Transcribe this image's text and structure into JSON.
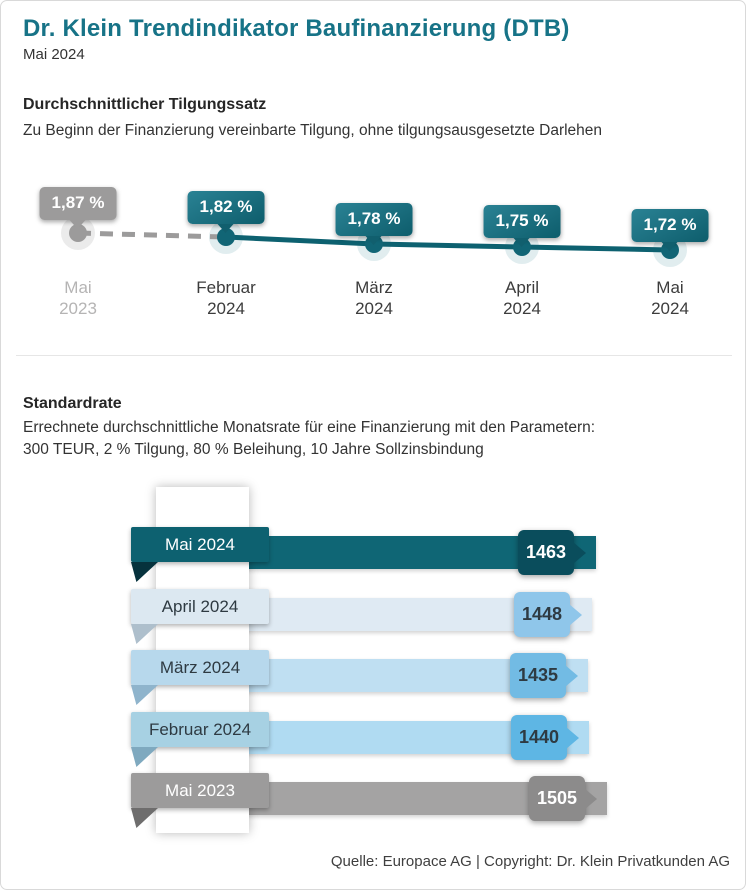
{
  "header": {
    "title": "Dr. Klein Trendindikator Baufinanzierung (DTB)",
    "subtitle": "Mai 2024"
  },
  "footer": {
    "text": "Quelle: Europace AG | Copyright: Dr. Klein Privatkunden AG"
  },
  "colors": {
    "accent_teal": "#177387",
    "teal_dark": "#0d6170",
    "muted_gray": "#9c9b9b",
    "divider": "#e6e6e6"
  },
  "chart_data": [
    {
      "type": "line",
      "title": "Durchschnittlicher Tilgungssatz",
      "subtitle": "Zu Beginn der Finanzierung vereinbarte Tilgung, ohne tilgungsausgesetzte Darlehen",
      "grid": false,
      "legend": "none",
      "line_style": "first segment dashed gray, rest solid teal",
      "points": [
        {
          "label": [
            "Mai",
            "2023"
          ],
          "value": 1.87,
          "value_label": "1,87 %",
          "muted": true
        },
        {
          "label": [
            "Februar",
            "2024"
          ],
          "value": 1.82,
          "value_label": "1,82 %",
          "muted": false
        },
        {
          "label": [
            "März",
            "2024"
          ],
          "value": 1.78,
          "value_label": "1,78 %",
          "muted": false
        },
        {
          "label": [
            "April",
            "2024"
          ],
          "value": 1.75,
          "value_label": "1,75 %",
          "muted": false
        },
        {
          "label": [
            "Mai",
            "2024"
          ],
          "value": 1.72,
          "value_label": "1,72 %",
          "muted": false
        }
      ]
    },
    {
      "type": "bar",
      "orientation": "horizontal",
      "title": "Standardrate",
      "subtitle": [
        "Errechnete durchschnittliche Monatsrate für eine Finanzierung mit den Parametern:",
        "300 TEUR, 2 % Tilgung, 80 % Beleihung, 10 Jahre Sollzinsbindung"
      ],
      "bars": [
        {
          "label": "Mai 2024",
          "value": 1463,
          "theme": {
            "tag": "#0d6170",
            "tagText": "#ffffff",
            "bar": "#0f6675",
            "badge": "#0a4d5c",
            "badgeText": "#ffffff",
            "fold": "#06323d"
          }
        },
        {
          "label": "April 2024",
          "value": 1448,
          "theme": {
            "tag": "#dce8f1",
            "tagText": "#2e3a42",
            "bar": "#dfeaf3",
            "badge": "#8fc6ea",
            "badgeText": "#2e3a42",
            "fold": "#aebfcc"
          }
        },
        {
          "label": "März 2024",
          "value": 1435,
          "theme": {
            "tag": "#b7d8ec",
            "tagText": "#2e3a42",
            "bar": "#bfdff2",
            "badge": "#72bbe4",
            "badgeText": "#2e3a42",
            "fold": "#8fb4cc"
          }
        },
        {
          "label": "Februar 2024",
          "value": 1440,
          "theme": {
            "tag": "#a7d1e3",
            "tagText": "#2e3a42",
            "bar": "#b0dbf2",
            "badge": "#5eb6e4",
            "badgeText": "#2e3a42",
            "fold": "#7fa9bf"
          }
        },
        {
          "label": "Mai 2023",
          "value": 1505,
          "theme": {
            "tag": "#9c9b9b",
            "tagText": "#ffffff",
            "bar": "#a4a3a3",
            "badge": "#8c8b8b",
            "badgeText": "#ffffff",
            "fold": "#6e6d6d"
          }
        }
      ]
    }
  ]
}
